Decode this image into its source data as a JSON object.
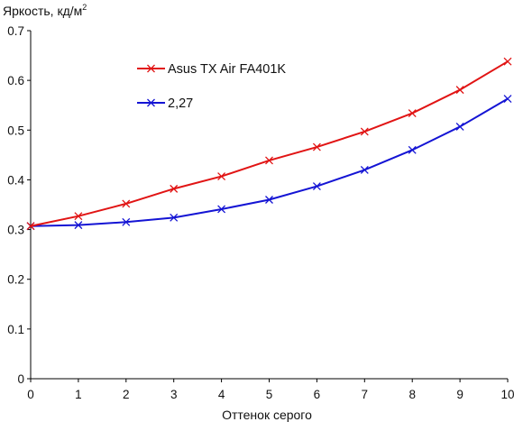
{
  "chart_data": {
    "type": "line",
    "ylabel": "Яркость, кд/м",
    "ylabel_sup": "2",
    "xlabel": "Оттенок серого",
    "xlim": [
      0,
      10
    ],
    "ylim": [
      0,
      0.7
    ],
    "x_ticks": [
      0,
      1,
      2,
      3,
      4,
      5,
      6,
      7,
      8,
      9,
      10
    ],
    "y_ticks": [
      0,
      0.1,
      0.2,
      0.3,
      0.4,
      0.5,
      0.6,
      0.7
    ],
    "y_tick_labels": [
      "0",
      "0.1",
      "0.2",
      "0.3",
      "0.4",
      "0.5",
      "0.6",
      "0.7"
    ],
    "grid": false,
    "legend_position": "upper-left inside plot",
    "x": [
      0,
      1,
      2,
      3,
      4,
      5,
      6,
      7,
      8,
      9,
      10
    ],
    "series": [
      {
        "name": "Asus TX Air FA401K",
        "color": "#e11414",
        "marker": "x",
        "values": [
          0.307,
          0.327,
          0.352,
          0.382,
          0.407,
          0.439,
          0.466,
          0.497,
          0.534,
          0.581,
          0.638
        ]
      },
      {
        "name": "2,27",
        "color": "#1414d4",
        "marker": "x",
        "values": [
          0.307,
          0.309,
          0.315,
          0.324,
          0.341,
          0.36,
          0.387,
          0.42,
          0.46,
          0.507,
          0.563
        ]
      }
    ]
  }
}
